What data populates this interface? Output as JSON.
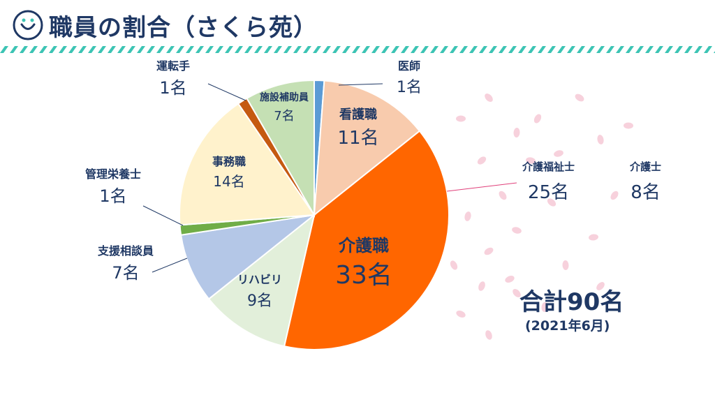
{
  "header": {
    "title": "職員の割合（さくら苑）"
  },
  "summary": {
    "total": "合計90名",
    "date": "(2021年6月)"
  },
  "breakdown": [
    {
      "label": "介護福祉士",
      "value_text": "25名",
      "value": 25
    },
    {
      "label": "介護士",
      "value_text": "8名",
      "value": 8
    }
  ],
  "colors": {
    "title": "#1f3864",
    "stripe": "#3cc4b4",
    "petal": "#f6c9d6"
  },
  "chart_data": {
    "type": "pie",
    "title": "",
    "unit": "名",
    "slices": [
      {
        "name": "医師",
        "value": 1,
        "value_text": "1名",
        "color": "#5b9bd5"
      },
      {
        "name": "看護職",
        "value": 11,
        "value_text": "11名",
        "color": "#f8cbad"
      },
      {
        "name": "介護職",
        "value": 33,
        "value_text": "33名",
        "color": "#ff6600"
      },
      {
        "name": "リハビリ",
        "value": 9,
        "value_text": "9名",
        "color": "#e2efda"
      },
      {
        "name": "支援相談員",
        "value": 7,
        "value_text": "7名",
        "color": "#b4c7e7"
      },
      {
        "name": "管理栄養士",
        "value": 1,
        "value_text": "1名",
        "color": "#70ad47"
      },
      {
        "name": "事務職",
        "value": 14,
        "value_text": "14名",
        "color": "#fff2cc"
      },
      {
        "name": "運転手",
        "value": 1,
        "value_text": "1名",
        "color": "#c55a11"
      },
      {
        "name": "施設補助員",
        "value": 7,
        "value_text": "7名",
        "color": "#c5e0b4"
      }
    ]
  }
}
